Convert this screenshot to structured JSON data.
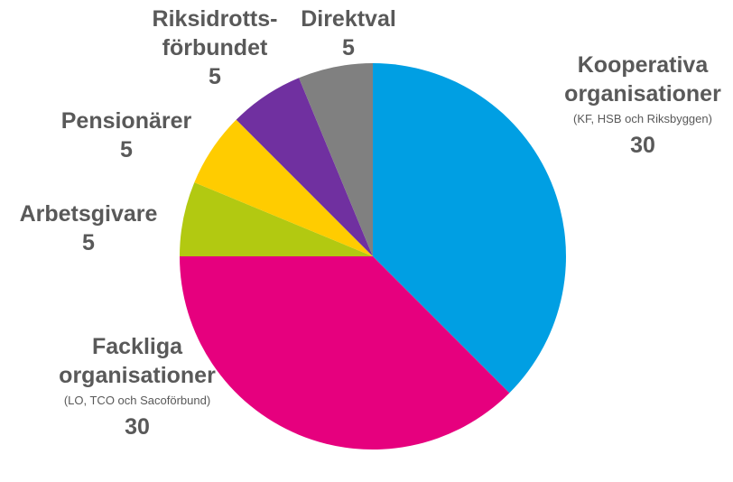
{
  "chart_data": {
    "type": "pie",
    "start_angle_deg": 0,
    "direction": "clockwise",
    "slices": [
      {
        "name_lines": [
          "Kooperativa",
          "organisationer"
        ],
        "sub": "(KF, HSB och Riksbyggen)",
        "value": 30,
        "color": "#009fe3"
      },
      {
        "name_lines": [
          "Fackliga",
          "organisationer"
        ],
        "sub": "(LO, TCO och Sacoförbund)",
        "value": 30,
        "color": "#e6007e"
      },
      {
        "name_lines": [
          "Arbetsgivare"
        ],
        "sub": "",
        "value": 5,
        "color": "#b2c911"
      },
      {
        "name_lines": [
          "Pensionärer"
        ],
        "sub": "",
        "value": 5,
        "color": "#ffcc00"
      },
      {
        "name_lines": [
          "Riksidrotts-",
          "förbundet"
        ],
        "sub": "",
        "value": 5,
        "color": "#7030a0"
      },
      {
        "name_lines": [
          "Direktval"
        ],
        "sub": "",
        "value": 5,
        "color": "#808080"
      }
    ]
  }
}
